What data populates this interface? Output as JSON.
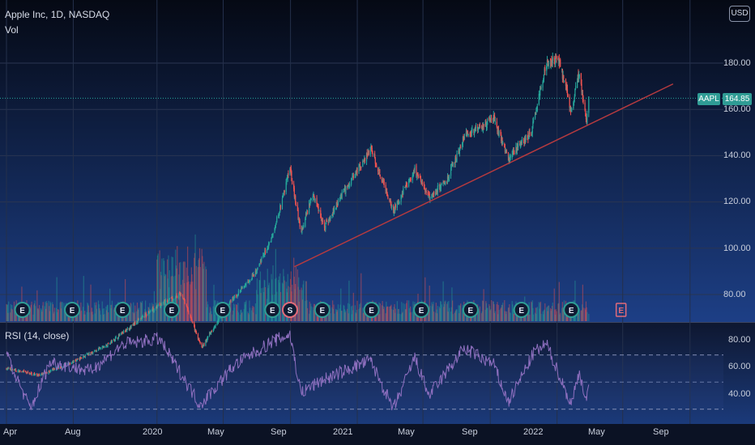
{
  "header": {
    "symbol_line": "Apple Inc, 1D, NASDAQ",
    "volume_label": "Vol",
    "currency_button": "USD",
    "rsi_label": "RSI (14, close)"
  },
  "last_price": {
    "ticker": "AAPL",
    "value": "164.85"
  },
  "colors": {
    "up": "#26a69a",
    "down": "#ef5350",
    "trendline": "#b53a3f",
    "rsi_line": "#8e6fbf",
    "earnings_marker": "#2f9c95",
    "dividend_marker": "#e06b7a",
    "upcoming_earnings": "#e06b7a"
  },
  "chart_data": [
    {
      "type": "candlestick",
      "title": "Apple Inc, 1D, NASDAQ",
      "price_axis_ticks": [
        "80.00",
        "100.00",
        "120.00",
        "140.00",
        "160.00",
        "180.00"
      ],
      "time_axis_ticks": [
        "Apr",
        "Aug",
        "2020",
        "May",
        "Sep",
        "2021",
        "May",
        "Sep",
        "2022",
        "May",
        "Sep"
      ],
      "ylim": [
        70,
        200
      ],
      "x_range": [
        "2019-04-01",
        "2022-11-01"
      ],
      "price_path": [
        {
          "date": "2019-04-01",
          "close": 48
        },
        {
          "date": "2019-06-01",
          "close": 45
        },
        {
          "date": "2019-08-01",
          "close": 51
        },
        {
          "date": "2019-10-01",
          "close": 58
        },
        {
          "date": "2020-01-01",
          "close": 75
        },
        {
          "date": "2020-02-15",
          "close": 80
        },
        {
          "date": "2020-03-23",
          "close": 57
        },
        {
          "date": "2020-05-01",
          "close": 73
        },
        {
          "date": "2020-07-01",
          "close": 90
        },
        {
          "date": "2020-07-31",
          "close": 106
        },
        {
          "date": "2020-08-31",
          "close": 134
        },
        {
          "date": "2020-09-20",
          "close": 107
        },
        {
          "date": "2020-10-12",
          "close": 124
        },
        {
          "date": "2020-11-02",
          "close": 109
        },
        {
          "date": "2020-12-01",
          "close": 122
        },
        {
          "date": "2021-01-26",
          "close": 143
        },
        {
          "date": "2021-03-08",
          "close": 116
        },
        {
          "date": "2021-04-16",
          "close": 134
        },
        {
          "date": "2021-05-12",
          "close": 122
        },
        {
          "date": "2021-06-15",
          "close": 130
        },
        {
          "date": "2021-07-15",
          "close": 148
        },
        {
          "date": "2021-09-07",
          "close": 156
        },
        {
          "date": "2021-10-04",
          "close": 139
        },
        {
          "date": "2021-11-15",
          "close": 150
        },
        {
          "date": "2021-12-13",
          "close": 180
        },
        {
          "date": "2022-01-04",
          "close": 182
        },
        {
          "date": "2022-01-27",
          "close": 159
        },
        {
          "date": "2022-02-10",
          "close": 176
        },
        {
          "date": "2022-02-24",
          "close": 155
        },
        {
          "date": "2022-02-28",
          "close": 164.85
        }
      ],
      "trendline": [
        {
          "date": "2020-09-08",
          "value": 92
        },
        {
          "date": "2022-08-01",
          "value": 171
        }
      ],
      "last_price": 164.85
    },
    {
      "type": "bar",
      "title": "Vol",
      "note": "volume bars shown along the base of the price pane, colored by up/down day"
    },
    {
      "type": "line",
      "title": "RSI (14, close)",
      "ylim": [
        20,
        90
      ],
      "ticks": [
        "40.00",
        "60.00",
        "80.00"
      ],
      "bands": [
        30,
        50,
        70
      ],
      "x_range": [
        "2019-04-01",
        "2022-11-01"
      ],
      "rsi_path": [
        {
          "date": "2019-04-01",
          "value": 70
        },
        {
          "date": "2019-05-15",
          "value": 30
        },
        {
          "date": "2019-06-20",
          "value": 65
        },
        {
          "date": "2019-09-01",
          "value": 58
        },
        {
          "date": "2019-11-01",
          "value": 78
        },
        {
          "date": "2020-01-05",
          "value": 82
        },
        {
          "date": "2020-03-20",
          "value": 33
        },
        {
          "date": "2020-05-20",
          "value": 62
        },
        {
          "date": "2020-07-30",
          "value": 80
        },
        {
          "date": "2020-08-31",
          "value": 85
        },
        {
          "date": "2020-09-20",
          "value": 42
        },
        {
          "date": "2020-11-01",
          "value": 52
        },
        {
          "date": "2021-01-25",
          "value": 66
        },
        {
          "date": "2021-03-08",
          "value": 30
        },
        {
          "date": "2021-04-16",
          "value": 68
        },
        {
          "date": "2021-05-12",
          "value": 40
        },
        {
          "date": "2021-07-15",
          "value": 75
        },
        {
          "date": "2021-09-07",
          "value": 63
        },
        {
          "date": "2021-10-04",
          "value": 35
        },
        {
          "date": "2021-11-20",
          "value": 72
        },
        {
          "date": "2021-12-13",
          "value": 78
        },
        {
          "date": "2022-01-27",
          "value": 33
        },
        {
          "date": "2022-02-10",
          "value": 58
        },
        {
          "date": "2022-02-24",
          "value": 36
        },
        {
          "date": "2022-02-28",
          "value": 45
        }
      ]
    }
  ],
  "events": [
    {
      "type": "earnings",
      "label": "E",
      "date": "2019-04-30"
    },
    {
      "type": "earnings",
      "label": "E",
      "date": "2019-07-30"
    },
    {
      "type": "earnings",
      "label": "E",
      "date": "2019-10-30"
    },
    {
      "type": "earnings",
      "label": "E",
      "date": "2020-01-28"
    },
    {
      "type": "earnings",
      "label": "E",
      "date": "2020-04-30"
    },
    {
      "type": "earnings",
      "label": "E",
      "date": "2020-07-30"
    },
    {
      "type": "split",
      "label": "S",
      "date": "2020-08-31"
    },
    {
      "type": "earnings",
      "label": "E",
      "date": "2020-10-29"
    },
    {
      "type": "earnings",
      "label": "E",
      "date": "2021-01-27"
    },
    {
      "type": "earnings",
      "label": "E",
      "date": "2021-04-28"
    },
    {
      "type": "earnings",
      "label": "E",
      "date": "2021-07-27"
    },
    {
      "type": "earnings",
      "label": "E",
      "date": "2021-10-28"
    },
    {
      "type": "earnings",
      "label": "E",
      "date": "2022-01-27"
    },
    {
      "type": "upcoming-earnings",
      "label": "E",
      "date": "2022-04-28"
    }
  ]
}
